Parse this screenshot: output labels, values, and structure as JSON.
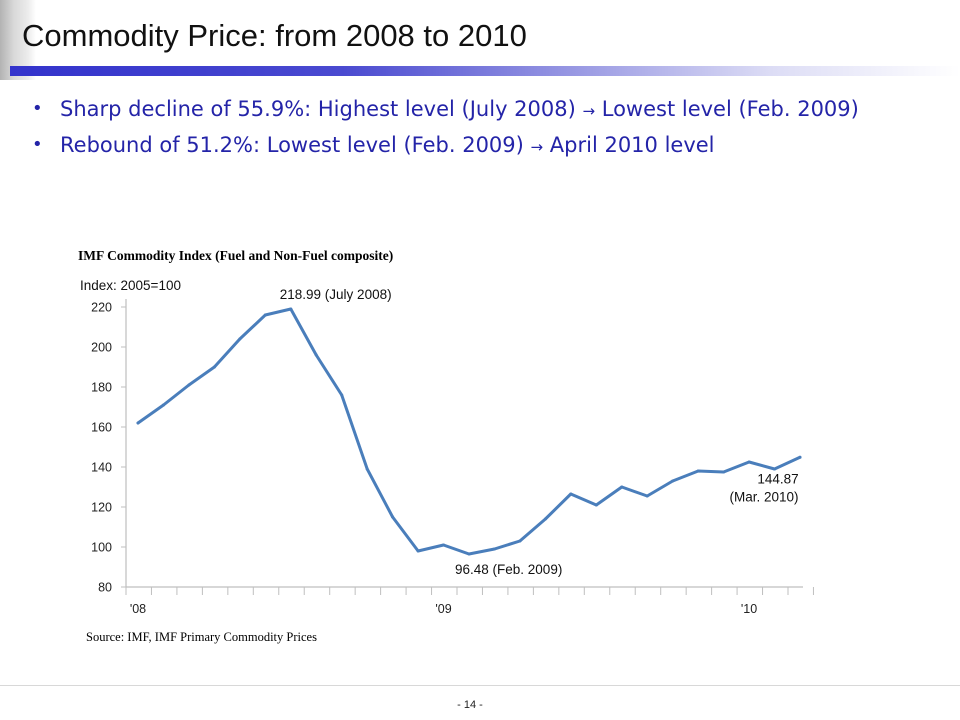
{
  "slide": {
    "title": "Commodity Price: from 2008 to 2010",
    "bullets": [
      {
        "before": "Sharp decline of 55.9%: Highest level (July 2008) ",
        "arrow": "→",
        "after": " Lowest level (Feb. 2009)"
      },
      {
        "before": "Rebound of 51.2%: Lowest level (Feb. 2009) ",
        "arrow": "→",
        "after": " April 2010 level"
      }
    ],
    "bullet_glyph": "•",
    "chart_caption": "IMF Commodity Index (Fuel and Non-Fuel composite)",
    "source": "Source: IMF,  IMF Primary Commodity Prices",
    "page_number": "- 14 -"
  },
  "colors": {
    "title_rule": "#3333cc",
    "bullet_text": "#2424a8",
    "series_line": "#4a7ebb",
    "axis": "#bfbfbf"
  },
  "chart_data": {
    "type": "line",
    "unit_label": "Index: 2005=100",
    "ylim": [
      80,
      220
    ],
    "yticks": [
      80,
      100,
      120,
      140,
      160,
      180,
      200,
      220
    ],
    "x": [
      "2008-01",
      "2008-02",
      "2008-03",
      "2008-04",
      "2008-05",
      "2008-06",
      "2008-07",
      "2008-08",
      "2008-09",
      "2008-10",
      "2008-11",
      "2008-12",
      "2009-01",
      "2009-02",
      "2009-03",
      "2009-04",
      "2009-05",
      "2009-06",
      "2009-07",
      "2009-08",
      "2009-09",
      "2009-10",
      "2009-11",
      "2009-12",
      "2010-01",
      "2010-02",
      "2010-03"
    ],
    "xtick_labels": [
      {
        "x": "2008-01",
        "label": "'08"
      },
      {
        "x": "2009-01",
        "label": "'09"
      },
      {
        "x": "2010-01",
        "label": "'10"
      }
    ],
    "series": [
      {
        "values": [
          162,
          171,
          181,
          190,
          204,
          216,
          218.99,
          196,
          176,
          139,
          115,
          98,
          101,
          96.48,
          99,
          103,
          114,
          126.5,
          121,
          130,
          125.5,
          133,
          138,
          137.5,
          142.5,
          139,
          144.87
        ]
      }
    ],
    "annotations": [
      {
        "x": "2008-07",
        "y": 218.99,
        "text": "218.99 (July 2008)"
      },
      {
        "x": "2009-02",
        "y": 96.48,
        "text": "96.48 (Feb. 2009)"
      },
      {
        "x": "2010-03",
        "y": 144.87,
        "text": "144.87",
        "text2": "(Mar. 2010)"
      }
    ],
    "grid": false
  }
}
